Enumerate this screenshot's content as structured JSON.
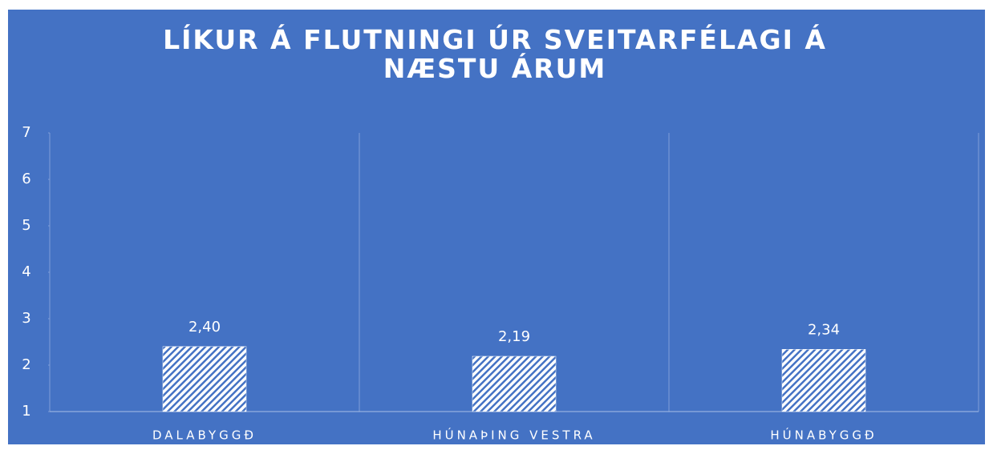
{
  "chart_data": {
    "type": "bar",
    "title": "LÍKUR Á FLUTNINGI ÚR SVEITARFÉLAGI Á NÆSTU ÁRUM",
    "categories": [
      "DALABYGGÐ",
      "HÚNAÞING VESTRA",
      "HÚNABYGGÐ"
    ],
    "values": [
      2.4,
      2.19,
      2.34
    ],
    "value_labels": [
      "2,40",
      "2,19",
      "2,34"
    ],
    "color": "#ffffff",
    "ylim": [
      1,
      7
    ],
    "yticks": [
      1,
      2,
      3,
      4,
      5,
      6,
      7
    ]
  }
}
